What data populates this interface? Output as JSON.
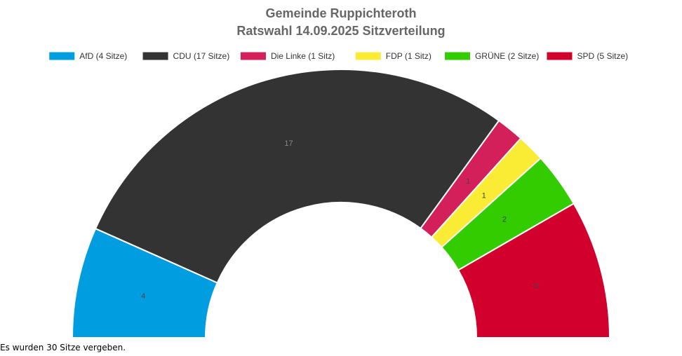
{
  "chart_data": {
    "type": "pie",
    "variant": "semicircle-parliament",
    "title": "Gemeinde Ruppichteroth",
    "subtitle": "Ratswahl 14.09.2025 Sitzverteilung",
    "series": [
      {
        "party": "AfD",
        "legend": "AfD (4 Sitze)",
        "value": 4,
        "label": "4",
        "color": "#009ee0"
      },
      {
        "party": "CDU",
        "legend": "CDU (17 Sitze)",
        "value": 17,
        "label": "17",
        "color": "#333333"
      },
      {
        "party": "Die Linke",
        "legend": "Die Linke (1 Sitz)",
        "value": 1,
        "label": "1",
        "color": "#d4205a"
      },
      {
        "party": "FDP",
        "legend": "FDP (1 Sitz)",
        "value": 1,
        "label": "1",
        "color": "#faeb34"
      },
      {
        "party": "GRÜNE",
        "legend": "GRÜNE (2 Sitze)",
        "value": 2,
        "label": "2",
        "color": "#33cc00"
      },
      {
        "party": "SPD",
        "legend": "SPD (5 Sitze)",
        "value": 5,
        "label": "5",
        "color": "#d1002c"
      }
    ],
    "total": 30,
    "legend_position": "top"
  },
  "footnote": "Es wurden 30 Sitze vergeben."
}
